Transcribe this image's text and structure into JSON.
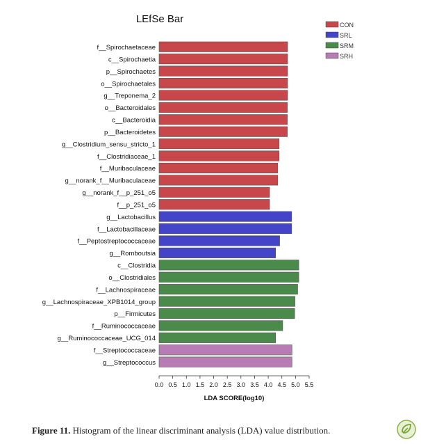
{
  "chart_data": {
    "type": "bar",
    "orientation": "horizontal",
    "title": "LEfSe Bar",
    "xlabel": "LDA SCORE(log10)",
    "xlim": [
      0.0,
      5.5
    ],
    "xticks": [
      "0.0",
      "0.5",
      "1.0",
      "1.5",
      "2.0",
      "2.5",
      "3.0",
      "3.5",
      "4.0",
      "4.5",
      "5.0",
      "5.5"
    ],
    "grid": false,
    "legend_position": "top-right",
    "legend": [
      {
        "name": "CON",
        "color": "#c8474b"
      },
      {
        "name": "SRL",
        "color": "#4444c8"
      },
      {
        "name": "SRM",
        "color": "#4a8a4a"
      },
      {
        "name": "SRH",
        "color": "#b87cb4"
      }
    ],
    "bars": [
      {
        "label": "f__Spirochaetaceae",
        "value": 4.71,
        "group": "CON"
      },
      {
        "label": "c__Spirochaetia",
        "value": 4.71,
        "group": "CON"
      },
      {
        "label": "p__Spirochaetes",
        "value": 4.71,
        "group": "CON"
      },
      {
        "label": "o__Spirochaetales",
        "value": 4.71,
        "group": "CON"
      },
      {
        "label": "g__Treponema_2",
        "value": 4.71,
        "group": "CON"
      },
      {
        "label": "o__Bacteroidales",
        "value": 4.7,
        "group": "CON"
      },
      {
        "label": "c__Bacteroidia",
        "value": 4.7,
        "group": "CON"
      },
      {
        "label": "p__Bacteroidetes",
        "value": 4.7,
        "group": "CON"
      },
      {
        "label": "g__Clostridium_sensu_stricto_1",
        "value": 4.4,
        "group": "CON"
      },
      {
        "label": "f__Clostridiaceae_1",
        "value": 4.4,
        "group": "CON"
      },
      {
        "label": "f__Muribaculaceae",
        "value": 4.35,
        "group": "CON"
      },
      {
        "label": "g__norank_f__Muribaculaceae",
        "value": 4.35,
        "group": "CON"
      },
      {
        "label": "g__norank_f__p_251_o5",
        "value": 4.05,
        "group": "CON"
      },
      {
        "label": "f__p_251_o5",
        "value": 4.05,
        "group": "CON"
      },
      {
        "label": "g__Lactobacillus",
        "value": 4.86,
        "group": "SRL"
      },
      {
        "label": "f__Lactobacillaceae",
        "value": 4.86,
        "group": "SRL"
      },
      {
        "label": "f__Peptostreptococcaceae",
        "value": 4.42,
        "group": "SRL"
      },
      {
        "label": "g__Romboutsia",
        "value": 4.27,
        "group": "SRL"
      },
      {
        "label": "c__Clostridia",
        "value": 5.12,
        "group": "SRM"
      },
      {
        "label": "o__Clostridiales",
        "value": 5.12,
        "group": "SRM"
      },
      {
        "label": "f__Lachnospiraceae",
        "value": 5.08,
        "group": "SRM"
      },
      {
        "label": "g__Lachnospiraceae_XPB1014_group",
        "value": 4.98,
        "group": "SRM"
      },
      {
        "label": "p__Firmicutes",
        "value": 4.97,
        "group": "SRM"
      },
      {
        "label": "f__Ruminococcaceae",
        "value": 4.53,
        "group": "SRM"
      },
      {
        "label": "g__Ruminococcaceae_UCG_014",
        "value": 4.27,
        "group": "SRM"
      },
      {
        "label": "f__Streptococcaceae",
        "value": 4.87,
        "group": "SRH"
      },
      {
        "label": "g__Streptococcus",
        "value": 4.87,
        "group": "SRH"
      }
    ]
  },
  "caption": {
    "label": "Figure 11.",
    "text": " Histogram of the linear discriminant analysis (LDA) value distribution."
  },
  "badge_icon": "leaf-check-icon"
}
